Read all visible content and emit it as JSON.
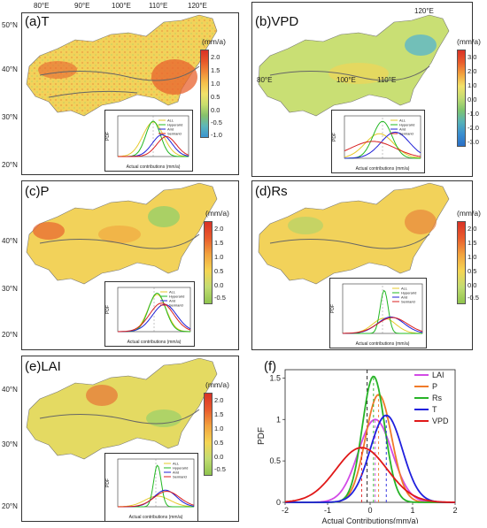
{
  "panels": {
    "a": {
      "label": "(a)T",
      "unit": "(mm/a)",
      "colorbar": [
        "2.0",
        "1.5",
        "1.0",
        "0.5",
        "0.0",
        "-0.5",
        "-1.0"
      ]
    },
    "b": {
      "label": "(b)VPD",
      "unit": "(mm/a)",
      "colorbar": [
        "3.0",
        "2.0",
        "1.0",
        "0.0",
        "-1.0",
        "-2.0",
        "-3.0"
      ]
    },
    "c": {
      "label": "(c)P",
      "unit": "(mm/a)",
      "colorbar": [
        "2.0",
        "1.5",
        "1.0",
        "0.5",
        "0.0",
        "-0.5"
      ]
    },
    "d": {
      "label": "(d)Rs",
      "unit": "(mm/a)",
      "colorbar": [
        "2.0",
        "1.5",
        "1.0",
        "0.5",
        "0.0",
        "-0.5"
      ]
    },
    "e": {
      "label": "(e)LAI",
      "unit": "(mm/a)",
      "colorbar": [
        "2.0",
        "1.5",
        "1.0",
        "0.5",
        "0.0",
        "-0.5"
      ]
    },
    "f": {
      "label": "(f)"
    }
  },
  "map_axes": {
    "lon_ticks": [
      "80°E",
      "90°E",
      "100°E",
      "110°E",
      "120°E"
    ],
    "lat_ticks": [
      "50°N",
      "40°N",
      "30°N",
      "20°N"
    ]
  },
  "inset": {
    "ylabel": "PDF",
    "xlabel": "Actual contributions (mm/a)",
    "legend": [
      "ALL",
      "Hyperarid",
      "Arid",
      "Semiarid"
    ],
    "colors": {
      "ALL": "#e6c92a",
      "Hyperarid": "#22b822",
      "Arid": "#1f1fd6",
      "Semiarid": "#d81f1f"
    }
  },
  "chart_data": {
    "type": "line",
    "title": "",
    "xlabel": "Actual Contributions(mm/a)",
    "ylabel": "PDF",
    "xlim": [
      -2,
      2
    ],
    "ylim": [
      0,
      1.6
    ],
    "xticks": [
      "-2",
      "-1",
      "0",
      "1",
      "2"
    ],
    "yticks": [
      "0",
      "0.5",
      "1",
      "1.5"
    ],
    "series": [
      {
        "name": "LAI",
        "color": "#d24be6",
        "mean": 0.12,
        "peak": 1.0
      },
      {
        "name": "P",
        "color": "#f07a2a",
        "mean": 0.2,
        "peak": 1.3
      },
      {
        "name": "Rs",
        "color": "#27b327",
        "mean": 0.08,
        "peak": 1.52
      },
      {
        "name": "T",
        "color": "#2020dd",
        "mean": 0.38,
        "peak": 1.05
      },
      {
        "name": "VPD",
        "color": "#e01818",
        "mean": -0.2,
        "peak": 0.66
      }
    ],
    "mean_line": -0.07
  }
}
